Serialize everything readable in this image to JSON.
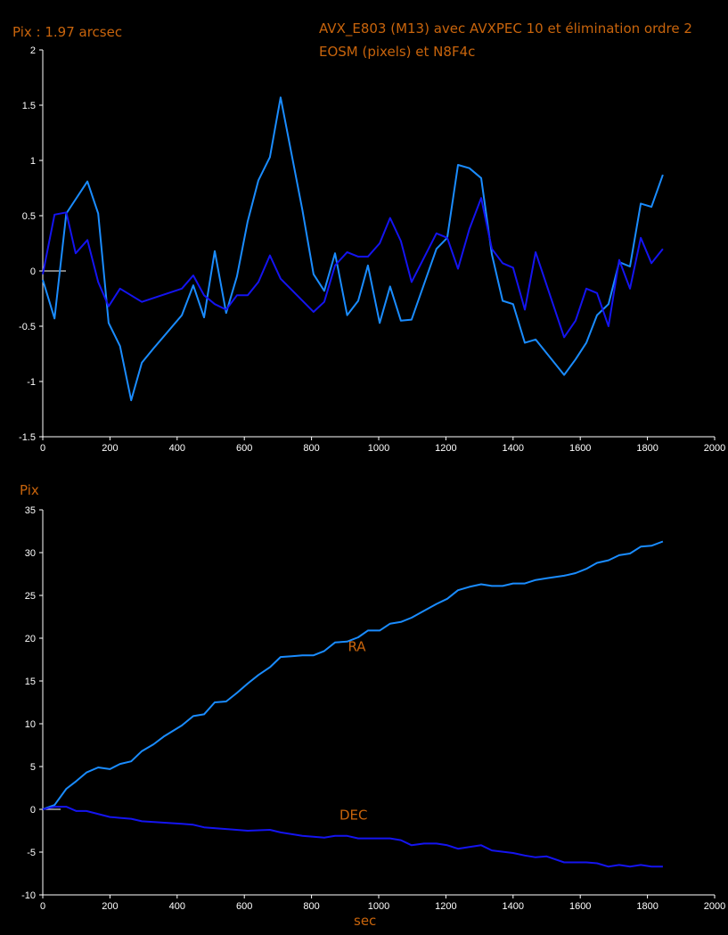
{
  "colors": {
    "ra": "#1a8cff",
    "dec": "#1414f0",
    "text": "#c8640c",
    "axis": "#ffffff",
    "background": "#000000"
  },
  "chart_data": [
    {
      "type": "line",
      "title": "AVX_E803 (M13) avec AVXPEC 10 et élimination ordre 2",
      "subtitle": "EOSM (pixels) et N8F4c",
      "ylabel": "Pix : 1.97 arcsec",
      "xlabel": "",
      "xlim": [
        0,
        2000
      ],
      "ylim": [
        -1.5,
        2
      ],
      "xticks": [
        "0",
        "200",
        "400",
        "600",
        "800",
        "1000",
        "1200",
        "1400",
        "1600",
        "1800",
        "2000"
      ],
      "yticks": [
        "2",
        "1.5",
        "1",
        "0.5",
        "0",
        "-0.5",
        "-1",
        "-1.5"
      ],
      "grid": false,
      "series": [
        {
          "name": "RA",
          "color": "#1a8cff",
          "x": [
            0,
            35,
            70,
            133,
            165,
            196,
            230,
            263,
            295,
            330,
            414,
            448,
            480,
            512,
            546,
            578,
            610,
            642,
            676,
            708,
            741,
            773,
            806,
            838,
            870,
            906,
            939,
            968,
            1003,
            1034,
            1066,
            1098,
            1172,
            1204,
            1236,
            1270,
            1305,
            1337,
            1369,
            1400,
            1435,
            1467,
            1552,
            1586,
            1618,
            1650,
            1684,
            1716,
            1748,
            1780,
            1812,
            1846
          ],
          "y": [
            -0.08,
            -0.43,
            0.52,
            0.81,
            0.52,
            -0.47,
            -0.68,
            -1.17,
            -0.83,
            -0.7,
            -0.4,
            -0.13,
            -0.42,
            0.18,
            -0.38,
            -0.05,
            0.45,
            0.82,
            1.03,
            1.57,
            1.05,
            0.55,
            -0.03,
            -0.18,
            0.16,
            -0.4,
            -0.27,
            0.05,
            -0.47,
            -0.14,
            -0.45,
            -0.44,
            0.2,
            0.3,
            0.96,
            0.93,
            0.84,
            0.15,
            -0.27,
            -0.3,
            -0.65,
            -0.62,
            -0.94,
            -0.8,
            -0.65,
            -0.4,
            -0.3,
            0.08,
            0.04,
            0.61,
            0.58,
            0.87
          ]
        },
        {
          "name": "DEC",
          "color": "#1414f0",
          "x": [
            0,
            35,
            70,
            98,
            133,
            165,
            196,
            230,
            295,
            414,
            448,
            480,
            512,
            546,
            578,
            610,
            642,
            676,
            708,
            806,
            838,
            870,
            906,
            939,
            968,
            1003,
            1034,
            1066,
            1098,
            1172,
            1204,
            1236,
            1270,
            1305,
            1337,
            1369,
            1400,
            1435,
            1467,
            1552,
            1586,
            1618,
            1650,
            1684,
            1716,
            1748,
            1780,
            1812,
            1846
          ],
          "y": [
            -0.03,
            0.51,
            0.53,
            0.16,
            0.28,
            -0.1,
            -0.32,
            -0.16,
            -0.28,
            -0.16,
            -0.04,
            -0.22,
            -0.3,
            -0.35,
            -0.22,
            -0.22,
            -0.1,
            0.14,
            -0.07,
            -0.37,
            -0.28,
            0.05,
            0.17,
            0.13,
            0.13,
            0.25,
            0.48,
            0.27,
            -0.1,
            0.34,
            0.3,
            0.02,
            0.38,
            0.66,
            0.2,
            0.07,
            0.03,
            -0.35,
            0.17,
            -0.6,
            -0.45,
            -0.16,
            -0.2,
            -0.5,
            0.1,
            -0.16,
            0.3,
            0.07,
            0.2
          ]
        }
      ]
    },
    {
      "type": "line",
      "ylabel": "Pix",
      "xlabel": "sec",
      "xlim": [
        0,
        2000
      ],
      "ylim": [
        -10,
        35
      ],
      "xticks": [
        "0",
        "200",
        "400",
        "600",
        "800",
        "1000",
        "1200",
        "1400",
        "1600",
        "1800",
        "2000"
      ],
      "yticks": [
        "35",
        "30",
        "25",
        "20",
        "15",
        "10",
        "5",
        "0",
        "-5",
        "-10"
      ],
      "grid": false,
      "annotations": [
        {
          "text": "RA",
          "x": 935,
          "y": 18.5
        },
        {
          "text": "DEC",
          "x": 925,
          "y": -1.2
        }
      ],
      "series": [
        {
          "name": "RA",
          "color": "#1a8cff",
          "x": [
            0,
            35,
            70,
            100,
            130,
            165,
            200,
            230,
            263,
            295,
            330,
            360,
            414,
            448,
            480,
            512,
            546,
            578,
            610,
            642,
            676,
            708,
            741,
            773,
            806,
            838,
            870,
            906,
            939,
            968,
            1003,
            1034,
            1066,
            1098,
            1135,
            1172,
            1204,
            1236,
            1270,
            1305,
            1337,
            1369,
            1400,
            1435,
            1467,
            1500,
            1552,
            1586,
            1618,
            1650,
            1684,
            1716,
            1748,
            1780,
            1812,
            1846
          ],
          "y": [
            0,
            0.5,
            2.4,
            3.3,
            4.3,
            4.9,
            4.7,
            5.3,
            5.6,
            6.8,
            7.6,
            8.5,
            9.8,
            10.9,
            11.1,
            12.5,
            12.6,
            13.6,
            14.7,
            15.7,
            16.6,
            17.8,
            17.9,
            18.0,
            18.0,
            18.5,
            19.5,
            19.6,
            20.1,
            20.9,
            20.9,
            21.7,
            21.9,
            22.4,
            23.2,
            24.0,
            24.6,
            25.6,
            26.0,
            26.3,
            26.1,
            26.1,
            26.4,
            26.4,
            26.8,
            27.0,
            27.3,
            27.6,
            28.1,
            28.8,
            29.1,
            29.7,
            29.9,
            30.7,
            30.8,
            31.3
          ]
        },
        {
          "name": "DEC",
          "color": "#1414f0",
          "x": [
            0,
            35,
            70,
            100,
            130,
            200,
            230,
            263,
            295,
            414,
            448,
            480,
            546,
            610,
            676,
            708,
            773,
            838,
            870,
            906,
            939,
            1034,
            1066,
            1098,
            1135,
            1172,
            1204,
            1236,
            1270,
            1305,
            1337,
            1400,
            1435,
            1467,
            1500,
            1552,
            1618,
            1650,
            1684,
            1716,
            1748,
            1780,
            1812,
            1846
          ],
          "y": [
            0,
            0.3,
            0.3,
            -0.2,
            -0.2,
            -0.9,
            -1.0,
            -1.1,
            -1.4,
            -1.7,
            -1.8,
            -2.1,
            -2.3,
            -2.5,
            -2.4,
            -2.7,
            -3.1,
            -3.3,
            -3.1,
            -3.1,
            -3.4,
            -3.4,
            -3.6,
            -4.2,
            -4.0,
            -4.0,
            -4.2,
            -4.6,
            -4.4,
            -4.2,
            -4.8,
            -5.1,
            -5.4,
            -5.6,
            -5.5,
            -6.2,
            -6.2,
            -6.3,
            -6.7,
            -6.5,
            -6.7,
            -6.5,
            -6.7,
            -6.7
          ]
        }
      ]
    }
  ]
}
